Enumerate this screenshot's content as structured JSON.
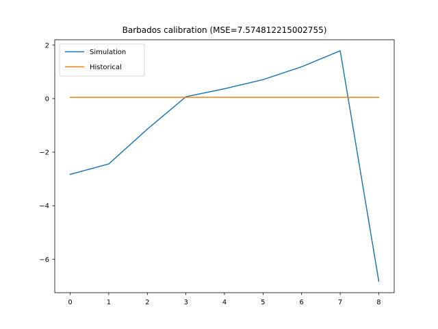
{
  "chart_data": {
    "type": "line",
    "title": "Barbados calibration (MSE=7.574812215002755)",
    "xlabel": "",
    "ylabel": "",
    "xlim": [
      -0.4,
      8.4
    ],
    "ylim": [
      -7.25,
      2.2
    ],
    "x_ticks": [
      0,
      1,
      2,
      3,
      4,
      5,
      6,
      7,
      8
    ],
    "y_ticks": [
      -6,
      -4,
      -2,
      0,
      2
    ],
    "x": [
      0,
      1,
      2,
      3,
      4,
      5,
      6,
      7,
      8
    ],
    "series": [
      {
        "name": "Simulation",
        "color": "#1f77b4",
        "values": [
          -2.83,
          -2.44,
          -1.14,
          0.07,
          0.37,
          0.71,
          1.19,
          1.79,
          -6.82
        ]
      },
      {
        "name": "Historical",
        "color": "#ff7f0e",
        "values": [
          0.05,
          0.05,
          0.05,
          0.05,
          0.05,
          0.05,
          0.05,
          0.05,
          0.05
        ]
      }
    ],
    "grid": false,
    "legend_position": "upper-left"
  }
}
